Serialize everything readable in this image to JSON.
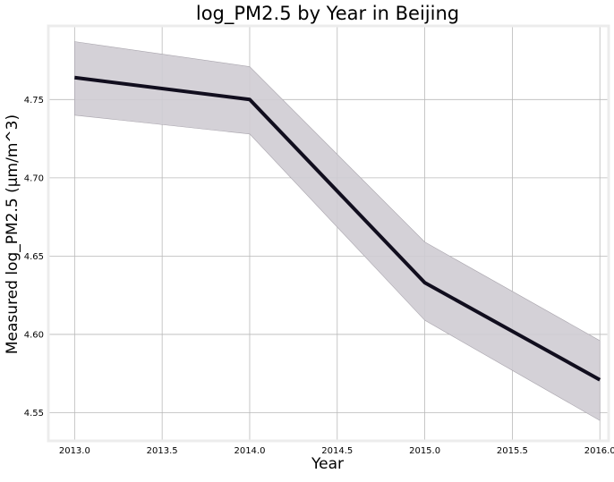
{
  "chart_data": {
    "type": "line",
    "title": "log_PM2.5 by Year in Beijing",
    "xlabel": "Year",
    "ylabel": "Measured log_PM2.5 (µm/m^3)",
    "xlim": [
      2012.85,
      2016.05
    ],
    "ylim": [
      4.532,
      4.797
    ],
    "xticks": [
      2013.0,
      2013.5,
      2014.0,
      2014.5,
      2015.0,
      2015.5,
      2016.0
    ],
    "xtick_labels": [
      "2013.0",
      "2013.5",
      "2014.0",
      "2014.5",
      "2015.0",
      "2015.5",
      "2016.0"
    ],
    "yticks": [
      4.55,
      4.6,
      4.65,
      4.7,
      4.75
    ],
    "ytick_labels": [
      "4.55",
      "4.60",
      "4.65",
      "4.70",
      "4.75"
    ],
    "grid": true,
    "series": [
      {
        "x": [
          2013,
          2014,
          2015,
          2016
        ],
        "y": [
          4.764,
          4.75,
          4.633,
          4.571
        ],
        "ci_lower": [
          4.74,
          4.728,
          4.609,
          4.545
        ],
        "ci_upper": [
          4.787,
          4.771,
          4.659,
          4.596
        ],
        "color": "#110e1e",
        "band_color": "#cfccd3"
      }
    ],
    "colors": {
      "grid": "#b9b9b9",
      "frame": "#ececec",
      "text": "#000000"
    }
  }
}
